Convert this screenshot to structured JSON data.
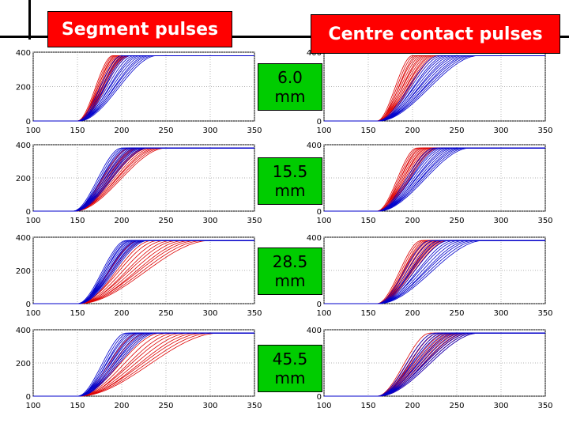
{
  "titles": {
    "left": "Segment pulses",
    "right": "Centre contact pulses"
  },
  "colors": {
    "title_box": "#ff0000",
    "label_box": "#00cc00",
    "series_red": "#dd0000",
    "series_blue": "#0000cc"
  },
  "chart_data": [
    {
      "type": "line",
      "id": "seg-6.0",
      "column": "Segment pulses",
      "row_label": "6.0 mm",
      "xlim": [
        100,
        350
      ],
      "ylim": [
        0,
        400
      ],
      "xticks": [
        100,
        150,
        200,
        250,
        300,
        350
      ],
      "yticks": [
        0,
        200,
        400
      ],
      "baseline": 0,
      "plateau": 380,
      "x_start": 150,
      "grid": true,
      "series": [
        {
          "color": "red",
          "rise_end_x_range": [
            190,
            210
          ]
        },
        {
          "color": "blue",
          "rise_end_x_range": [
            200,
            240
          ]
        }
      ]
    },
    {
      "type": "line",
      "id": "cc-6.0",
      "column": "Centre contact pulses",
      "row_label": "6.0 mm",
      "xlim": [
        100,
        350
      ],
      "ylim": [
        0,
        400
      ],
      "xticks": [
        100,
        150,
        200,
        250,
        300,
        350
      ],
      "yticks": [
        0,
        200,
        400
      ],
      "baseline": 0,
      "plateau": 380,
      "x_start": 160,
      "grid": true,
      "series": [
        {
          "color": "red",
          "rise_end_x_range": [
            200,
            230
          ]
        },
        {
          "color": "blue",
          "rise_end_x_range": [
            230,
            275
          ]
        }
      ]
    },
    {
      "type": "line",
      "id": "seg-15.5",
      "column": "Segment pulses",
      "row_label": "15.5 mm",
      "xlim": [
        100,
        350
      ],
      "ylim": [
        0,
        400
      ],
      "xticks": [
        100,
        150,
        200,
        250,
        300,
        350
      ],
      "yticks": [
        0,
        200,
        400
      ],
      "baseline": 0,
      "plateau": 380,
      "x_start": 145,
      "grid": true,
      "series": [
        {
          "color": "red",
          "rise_end_x_range": [
            210,
            250
          ]
        },
        {
          "color": "blue",
          "rise_end_x_range": [
            200,
            230
          ]
        }
      ]
    },
    {
      "type": "line",
      "id": "cc-15.5",
      "column": "Centre contact pulses",
      "row_label": "15.5 mm",
      "xlim": [
        100,
        350
      ],
      "ylim": [
        0,
        400
      ],
      "xticks": [
        100,
        150,
        200,
        250,
        300,
        350
      ],
      "yticks": [
        0,
        200,
        400
      ],
      "baseline": 0,
      "plateau": 380,
      "x_start": 160,
      "grid": true,
      "series": [
        {
          "color": "red",
          "rise_end_x_range": [
            205,
            230
          ]
        },
        {
          "color": "blue",
          "rise_end_x_range": [
            225,
            265
          ]
        }
      ]
    },
    {
      "type": "line",
      "id": "seg-28.5",
      "column": "Segment pulses",
      "row_label": "28.5 mm",
      "xlim": [
        100,
        350
      ],
      "ylim": [
        0,
        400
      ],
      "xticks": [
        100,
        150,
        200,
        250,
        300,
        350
      ],
      "yticks": [
        0,
        200,
        400
      ],
      "baseline": 0,
      "plateau": 380,
      "x_start": 150,
      "grid": true,
      "series": [
        {
          "color": "red",
          "rise_end_x_range": [
            220,
            300
          ]
        },
        {
          "color": "blue",
          "rise_end_x_range": [
            205,
            230
          ]
        }
      ]
    },
    {
      "type": "line",
      "id": "cc-28.5",
      "column": "Centre contact pulses",
      "row_label": "28.5 mm",
      "xlim": [
        100,
        350
      ],
      "ylim": [
        0,
        400
      ],
      "xticks": [
        100,
        150,
        200,
        250,
        300,
        350
      ],
      "yticks": [
        0,
        200,
        400
      ],
      "baseline": 0,
      "plateau": 380,
      "x_start": 160,
      "grid": true,
      "series": [
        {
          "color": "red",
          "rise_end_x_range": [
            210,
            240
          ]
        },
        {
          "color": "blue",
          "rise_end_x_range": [
            220,
            280
          ]
        }
      ]
    },
    {
      "type": "line",
      "id": "seg-45.5",
      "column": "Segment pulses",
      "row_label": "45.5 mm",
      "xlim": [
        100,
        350
      ],
      "ylim": [
        0,
        400
      ],
      "xticks": [
        100,
        150,
        200,
        250,
        300,
        350
      ],
      "yticks": [
        0,
        200,
        400
      ],
      "baseline": 0,
      "plateau": 380,
      "x_start": 150,
      "grid": true,
      "series": [
        {
          "color": "red",
          "rise_end_x_range": [
            220,
            310
          ]
        },
        {
          "color": "blue",
          "rise_end_x_range": [
            205,
            240
          ]
        }
      ]
    },
    {
      "type": "line",
      "id": "cc-45.5",
      "column": "Centre contact pulses",
      "row_label": "45.5 mm",
      "xlim": [
        100,
        350
      ],
      "ylim": [
        0,
        400
      ],
      "xticks": [
        100,
        150,
        200,
        250,
        300,
        350
      ],
      "yticks": [
        0,
        200,
        400
      ],
      "baseline": 0,
      "plateau": 380,
      "x_start": 160,
      "grid": true,
      "series": [
        {
          "color": "red",
          "rise_end_x_range": [
            220,
            275
          ]
        },
        {
          "color": "blue",
          "rise_end_x_range": [
            225,
            275
          ]
        }
      ]
    }
  ],
  "labels": [
    "6.0\nmm",
    "15.5\nmm",
    "28.5\nmm",
    "45.5\nmm"
  ]
}
